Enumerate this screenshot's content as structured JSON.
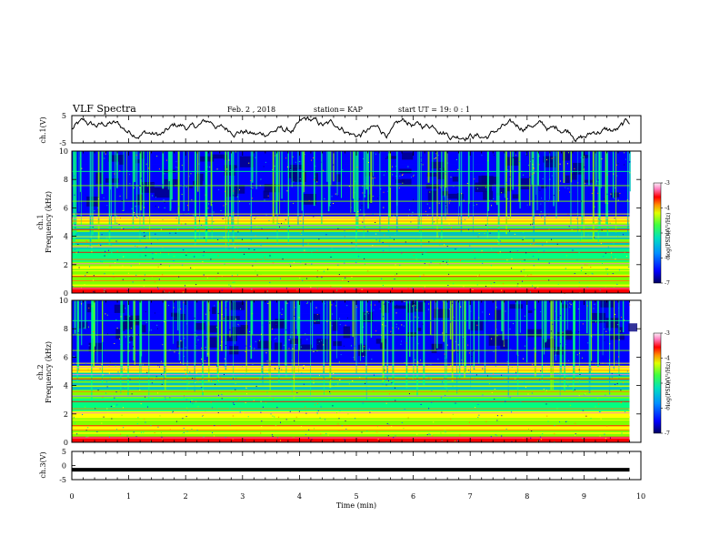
{
  "header": {
    "title": "VLF Spectra",
    "date": "Feb. 2 , 2018",
    "station": "station= KAP",
    "start": "start  UT =   19: 0  : 1"
  },
  "colors": {
    "waveform": "#000000",
    "colormap": [
      "#000080",
      "#0000ff",
      "#0080ff",
      "#00c0c0",
      "#00ff80",
      "#80ff00",
      "#ffff00",
      "#ff8000",
      "#ff0000",
      "#ff80c0",
      "#ffe0f0"
    ]
  },
  "chart_data": [
    {
      "type": "line",
      "name": "ch1-waveform",
      "ylabel": "ch.1(V)",
      "ylim": [
        -5,
        5
      ],
      "yticks": [
        "5",
        "-5"
      ],
      "xlim": [
        0,
        10
      ],
      "description_values": {
        "approx_mean": 0,
        "approx_amplitude": 2
      }
    },
    {
      "type": "heatmap",
      "name": "ch1-spectrogram",
      "ylabel_line1": "ch.1",
      "ylabel_line2": "Frequency (kHz)",
      "ylim": [
        0,
        10
      ],
      "yticks": [
        "0",
        "2",
        "4",
        "6",
        "8",
        "10"
      ],
      "xlim": [
        0,
        9.8
      ],
      "colorbar": {
        "label": "log(PSD)(V²/Hz)",
        "range": [
          -7,
          -3
        ],
        "ticks": [
          "-3",
          "-4",
          "-5",
          "-6",
          "-7"
        ]
      }
    },
    {
      "type": "heatmap",
      "name": "ch2-spectrogram",
      "ylabel_line1": "ch.2",
      "ylabel_line2": "Frequency (kHz)",
      "ylim": [
        0,
        10
      ],
      "yticks": [
        "0",
        "2",
        "4",
        "6",
        "8",
        "10"
      ],
      "xlim": [
        0,
        9.8
      ],
      "colorbar": {
        "label": "log(PSD)(V²/Hz)",
        "range": [
          -7,
          -3
        ],
        "ticks": [
          "-3",
          "-4",
          "-5",
          "-6",
          "-7"
        ]
      }
    },
    {
      "type": "line",
      "name": "ch3-waveform",
      "ylabel": "ch.3(V)",
      "ylim": [
        -5,
        5
      ],
      "yticks": [
        "5",
        "0",
        "-5"
      ],
      "x": [
        0,
        9.8
      ],
      "y": [
        -1.5,
        -1.5
      ]
    }
  ],
  "xaxis": {
    "label": "Time (min)",
    "ticks": [
      "0",
      "1",
      "2",
      "3",
      "4",
      "5",
      "6",
      "7",
      "8",
      "9",
      "10"
    ],
    "range": [
      0,
      10
    ]
  }
}
